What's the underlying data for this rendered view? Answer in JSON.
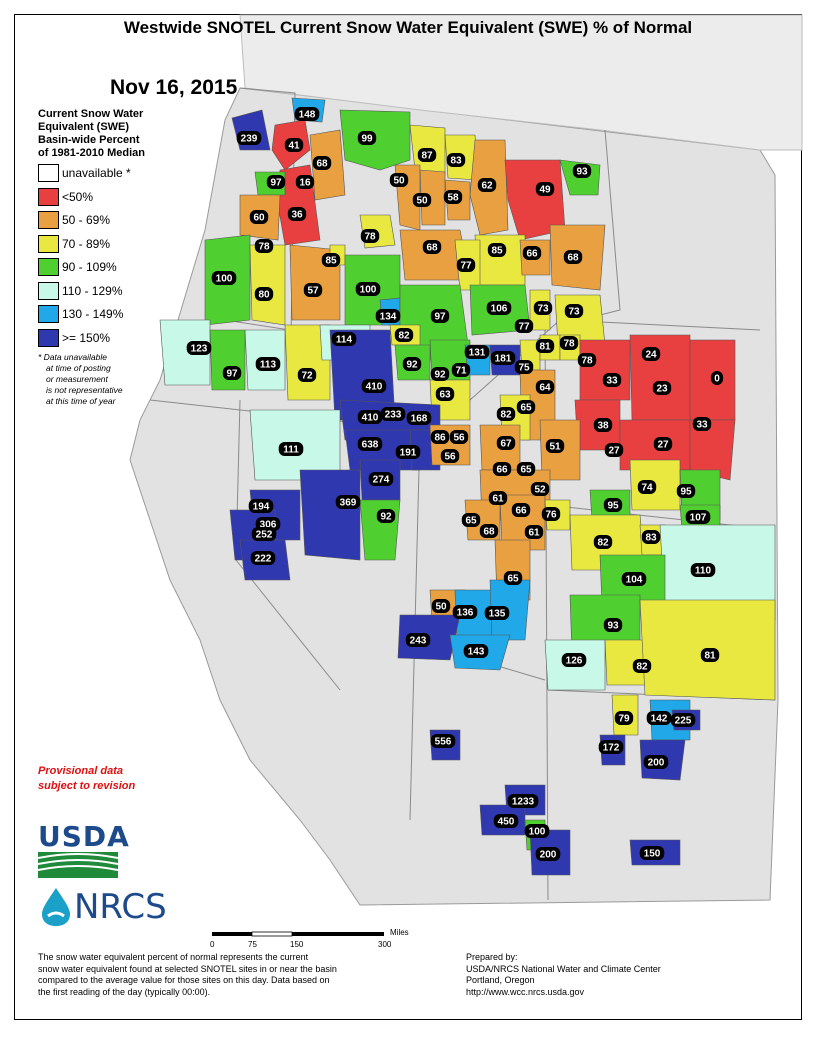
{
  "title": "Westwide SNOTEL Current Snow Water Equivalent (SWE) % of Normal",
  "date": "Nov 16, 2015",
  "legend": {
    "title_lines": [
      "Current Snow Water",
      "Equivalent (SWE)",
      "Basin-wide Percent",
      "of 1981-2010 Median"
    ],
    "items": [
      {
        "label": "unavailable *",
        "color": "#ffffff"
      },
      {
        "label": "<50%",
        "color": "#e84040"
      },
      {
        "label": "50 - 69%",
        "color": "#e8a040"
      },
      {
        "label": "70 - 89%",
        "color": "#e8e840"
      },
      {
        "label": "90 - 109%",
        "color": "#50d030"
      },
      {
        "label": "110 - 129%",
        "color": "#c8f8e8"
      },
      {
        "label": "130 - 149%",
        "color": "#20a8e8"
      },
      {
        "label": ">= 150%",
        "color": "#3038b0"
      }
    ],
    "note_lines": [
      "*  Data unavailable",
      "at time of posting",
      "or measurement",
      "is not representative",
      "at this time of year"
    ]
  },
  "provisional_lines": [
    "Provisional data",
    "subject to revision"
  ],
  "logos": {
    "usda": "USDA",
    "nrcs": "NRCS"
  },
  "scale": {
    "ticks": [
      "0",
      "75",
      "150",
      "300"
    ],
    "unit": "Miles"
  },
  "footer_left_lines": [
    "The snow water equivalent percent of normal represents the current",
    "snow water equivalent found at selected SNOTEL sites in or near the basin",
    "compared to the average value for those sites on this day. Data based on",
    "the first reading of the day (typically 00:00)."
  ],
  "footer_right_lines": [
    "Prepared by:",
    "USDA/NRCS National Water and Climate Center",
    "Portland, Oregon",
    "http://www.wcc.nrcs.usda.gov"
  ],
  "basins": [
    {
      "v": "148",
      "c": "#20a8e8"
    },
    {
      "v": "239",
      "c": "#3038b0"
    },
    {
      "v": "41",
      "c": "#e84040"
    },
    {
      "v": "99",
      "c": "#50d030"
    },
    {
      "v": "87",
      "c": "#e8e840"
    },
    {
      "v": "83",
      "c": "#e8e840"
    },
    {
      "v": "68",
      "c": "#e8a040"
    },
    {
      "v": "97",
      "c": "#50d030"
    },
    {
      "v": "16",
      "c": "#e84040"
    },
    {
      "v": "50",
      "c": "#e8a040"
    },
    {
      "v": "62",
      "c": "#e8a040"
    },
    {
      "v": "49",
      "c": "#e84040"
    },
    {
      "v": "93",
      "c": "#50d030"
    },
    {
      "v": "60",
      "c": "#e8a040"
    },
    {
      "v": "36",
      "c": "#e84040"
    },
    {
      "v": "50",
      "c": "#e8a040"
    },
    {
      "v": "58",
      "c": "#e8a040"
    },
    {
      "v": "78",
      "c": "#e8e840"
    },
    {
      "v": "78",
      "c": "#e8e840"
    },
    {
      "v": "68",
      "c": "#e8a040"
    },
    {
      "v": "85",
      "c": "#e8e840"
    },
    {
      "v": "66",
      "c": "#e8a040"
    },
    {
      "v": "68",
      "c": "#e8a040"
    },
    {
      "v": "100",
      "c": "#50d030"
    },
    {
      "v": "85",
      "c": "#e8e840"
    },
    {
      "v": "77",
      "c": "#e8e840"
    },
    {
      "v": "80",
      "c": "#e8e840"
    },
    {
      "v": "57",
      "c": "#e8a040"
    },
    {
      "v": "100",
      "c": "#50d030"
    },
    {
      "v": "134",
      "c": "#20a8e8"
    },
    {
      "v": "97",
      "c": "#50d030"
    },
    {
      "v": "106",
      "c": "#50d030"
    },
    {
      "v": "73",
      "c": "#e8e840"
    },
    {
      "v": "73",
      "c": "#e8e840"
    },
    {
      "v": "82",
      "c": "#e8e840"
    },
    {
      "v": "77",
      "c": "#e8e840"
    },
    {
      "v": "114",
      "c": "#c8f8e8"
    },
    {
      "v": "123",
      "c": "#c8f8e8"
    },
    {
      "v": "131",
      "c": "#20a8e8"
    },
    {
      "v": "181",
      "c": "#3038b0"
    },
    {
      "v": "81",
      "c": "#e8e840"
    },
    {
      "v": "78",
      "c": "#e8e840"
    },
    {
      "v": "24",
      "c": "#e84040"
    },
    {
      "v": "92",
      "c": "#50d030"
    },
    {
      "v": "97",
      "c": "#50d030"
    },
    {
      "v": "113",
      "c": "#c8f8e8"
    },
    {
      "v": "72",
      "c": "#e8e840"
    },
    {
      "v": "92",
      "c": "#50d030"
    },
    {
      "v": "71",
      "c": "#e8e840"
    },
    {
      "v": "75",
      "c": "#e8e840"
    },
    {
      "v": "78",
      "c": "#e8e840"
    },
    {
      "v": "33",
      "c": "#e84040"
    },
    {
      "v": "23",
      "c": "#e84040"
    },
    {
      "v": "0",
      "c": "#e84040"
    },
    {
      "v": "410",
      "c": "#3038b0"
    },
    {
      "v": "63",
      "c": "#e8a040"
    },
    {
      "v": "64",
      "c": "#e8a040"
    },
    {
      "v": "82",
      "c": "#e8e840"
    },
    {
      "v": "65",
      "c": "#e8a040"
    },
    {
      "v": "410",
      "c": "#3038b0"
    },
    {
      "v": "233",
      "c": "#3038b0"
    },
    {
      "v": "168",
      "c": "#3038b0"
    },
    {
      "v": "38",
      "c": "#e84040"
    },
    {
      "v": "33",
      "c": "#e84040"
    },
    {
      "v": "86",
      "c": "#e8e840"
    },
    {
      "v": "56",
      "c": "#e8a040"
    },
    {
      "v": "67",
      "c": "#e8a040"
    },
    {
      "v": "51",
      "c": "#e8a040"
    },
    {
      "v": "27",
      "c": "#e84040"
    },
    {
      "v": "27",
      "c": "#e84040"
    },
    {
      "v": "111",
      "c": "#c8f8e8"
    },
    {
      "v": "638",
      "c": "#3038b0"
    },
    {
      "v": "191",
      "c": "#3038b0"
    },
    {
      "v": "56",
      "c": "#e8a040"
    },
    {
      "v": "66",
      "c": "#e8a040"
    },
    {
      "v": "65",
      "c": "#e8a040"
    },
    {
      "v": "274",
      "c": "#3038b0"
    },
    {
      "v": "52",
      "c": "#e8a040"
    },
    {
      "v": "74",
      "c": "#e8e840"
    },
    {
      "v": "95",
      "c": "#50d030"
    },
    {
      "v": "369",
      "c": "#3038b0"
    },
    {
      "v": "61",
      "c": "#e8a040"
    },
    {
      "v": "95",
      "c": "#50d030"
    },
    {
      "v": "194",
      "c": "#3038b0"
    },
    {
      "v": "66",
      "c": "#e8a040"
    },
    {
      "v": "76",
      "c": "#e8e840"
    },
    {
      "v": "92",
      "c": "#50d030"
    },
    {
      "v": "65",
      "c": "#e8a040"
    },
    {
      "v": "107",
      "c": "#50d030"
    },
    {
      "v": "306",
      "c": "#3038b0"
    },
    {
      "v": "68",
      "c": "#e8a040"
    },
    {
      "v": "61",
      "c": "#e8a040"
    },
    {
      "v": "252",
      "c": "#3038b0"
    },
    {
      "v": "82",
      "c": "#e8e840"
    },
    {
      "v": "83",
      "c": "#e8e840"
    },
    {
      "v": "222",
      "c": "#3038b0"
    },
    {
      "v": "110",
      "c": "#c8f8e8"
    },
    {
      "v": "104",
      "c": "#50d030"
    },
    {
      "v": "65",
      "c": "#e8a040"
    },
    {
      "v": "50",
      "c": "#e8a040"
    },
    {
      "v": "136",
      "c": "#20a8e8"
    },
    {
      "v": "135",
      "c": "#20a8e8"
    },
    {
      "v": "93",
      "c": "#50d030"
    },
    {
      "v": "243",
      "c": "#3038b0"
    },
    {
      "v": "143",
      "c": "#20a8e8"
    },
    {
      "v": "126",
      "c": "#c8f8e8"
    },
    {
      "v": "82",
      "c": "#e8e840"
    },
    {
      "v": "81",
      "c": "#e8e840"
    },
    {
      "v": "79",
      "c": "#e8e840"
    },
    {
      "v": "142",
      "c": "#20a8e8"
    },
    {
      "v": "225",
      "c": "#3038b0"
    },
    {
      "v": "556",
      "c": "#3038b0"
    },
    {
      "v": "172",
      "c": "#3038b0"
    },
    {
      "v": "200",
      "c": "#3038b0"
    },
    {
      "v": "1233",
      "c": "#3038b0"
    },
    {
      "v": "450",
      "c": "#3038b0"
    },
    {
      "v": "100",
      "c": "#50d030"
    },
    {
      "v": "200",
      "c": "#3038b0"
    },
    {
      "v": "150",
      "c": "#3038b0"
    }
  ]
}
